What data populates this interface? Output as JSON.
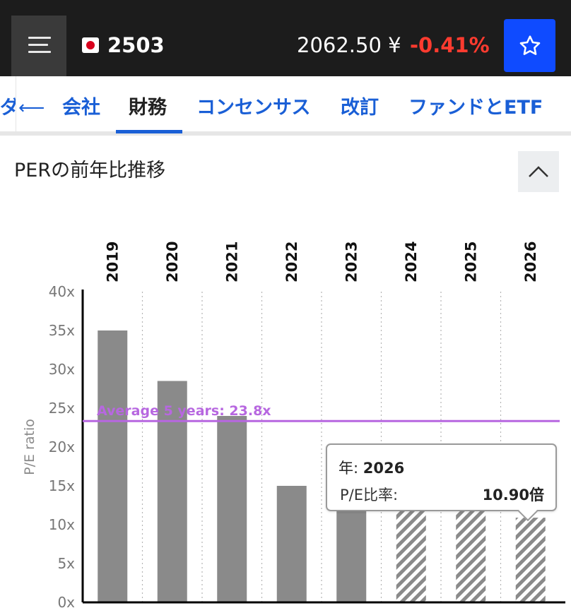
{
  "header": {
    "ticker": "2503",
    "price": "2062.50 ¥",
    "change": "-0.41%",
    "colors": {
      "background": "#1c1c1c",
      "change": "#ff3b2f",
      "star_button": "#0f4bff"
    }
  },
  "tabs": {
    "cut_label": "ダ",
    "items": [
      {
        "label": "会社",
        "active": false
      },
      {
        "label": "財務",
        "active": true
      },
      {
        "label": "コンセンサス",
        "active": false
      },
      {
        "label": "改訂",
        "active": false
      },
      {
        "label": "ファンドとETF",
        "active": false
      }
    ]
  },
  "section": {
    "title": "PERの前年比推移"
  },
  "chart_data": {
    "type": "bar",
    "categories": [
      "2019",
      "2020",
      "2021",
      "2022",
      "2023",
      "2024",
      "2025",
      "2026"
    ],
    "values": [
      35.0,
      28.5,
      24.0,
      15.0,
      12.0,
      12.0,
      12.0,
      10.9
    ],
    "estimated": [
      false,
      false,
      false,
      false,
      false,
      true,
      true,
      true
    ],
    "ylabel": "P/E ratio",
    "ylim": [
      0,
      40
    ],
    "yticks": [
      "0x",
      "5x",
      "10x",
      "15x",
      "20x",
      "25x",
      "30x",
      "35x",
      "40x"
    ],
    "average": {
      "label": "Average 5 years: 23.8x",
      "value": 23.8,
      "color": "#b767e0"
    },
    "bar_color": "#8a8a8a",
    "grid": "vertical dotted"
  },
  "tooltip": {
    "year_key": "年: ",
    "year_value": "2026",
    "metric_key": "P/E比率:",
    "metric_value": "10.90倍"
  }
}
